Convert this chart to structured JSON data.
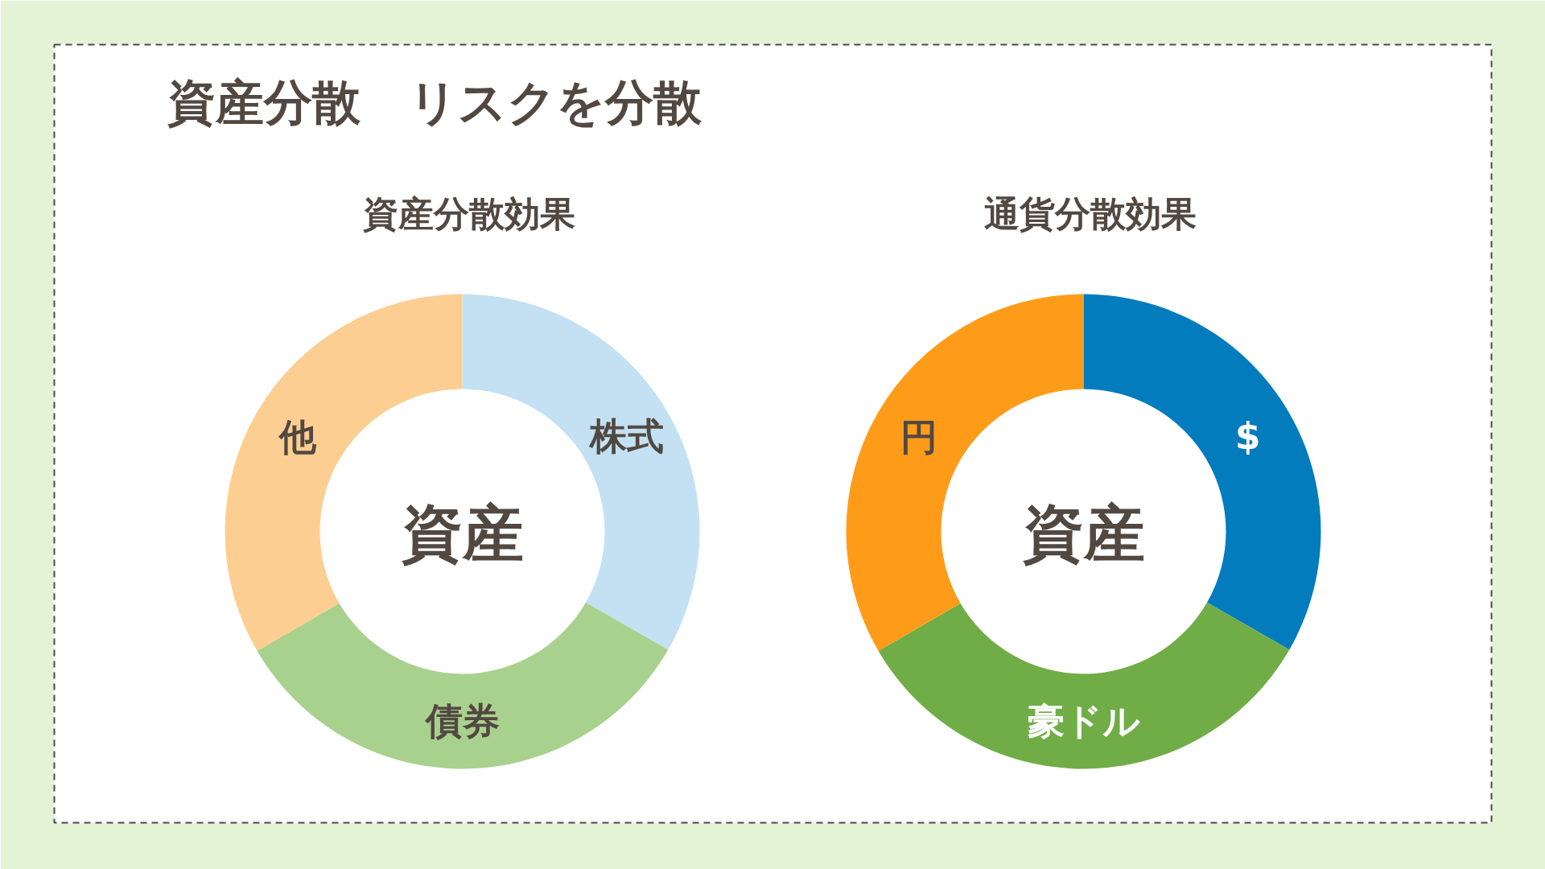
{
  "chart_data": [
    {
      "type": "other",
      "title": "資産分散　リスクを分散"
    },
    {
      "type": "donut",
      "title": "資産分散効果",
      "categories": [
        "株式",
        "債券",
        "他"
      ],
      "values": [
        33.3,
        33.3,
        33.4
      ],
      "colors": [
        "#c3e1f3",
        "#a9d18e",
        "#fdce92"
      ],
      "annotations": [
        "資産"
      ]
    },
    {
      "type": "donut",
      "title": "通貨分散効果",
      "categories": [
        "$",
        "豪ドル",
        "円"
      ],
      "values": [
        33.3,
        33.3,
        33.4
      ],
      "colors": [
        "#027cbd",
        "#70ad47",
        "#fe9c1a"
      ],
      "annotations": [
        "資産"
      ]
    }
  ]
}
